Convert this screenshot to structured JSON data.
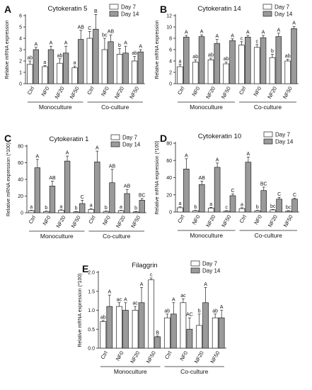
{
  "chart_data": [
    {
      "panel": "A",
      "type": "bar",
      "title": "Cytokeratin 5",
      "ylabel": "Relative mRNA expression",
      "ylim": [
        0,
        6
      ],
      "yticks": [
        0,
        1,
        2,
        3,
        4,
        5,
        6
      ],
      "categories": [
        "Ctrl",
        "NF0",
        "NF20",
        "NF50",
        "Ctrl",
        "NF0",
        "NF20",
        "NF50"
      ],
      "groups": [
        "Monoculture",
        "Co-culture"
      ],
      "series": [
        {
          "name": "Day 7",
          "values": [
            1.7,
            1.5,
            1.8,
            1.4,
            4.0,
            3.0,
            2.6,
            2.0
          ],
          "errors": [
            0.3,
            0.1,
            0.4,
            0.15,
            0.6,
            1.0,
            0.5,
            0.4
          ],
          "letters": [
            "ab",
            "a",
            "ab",
            "a",
            "C",
            "bc",
            "b",
            "ab"
          ]
        },
        {
          "name": "Day 14",
          "values": [
            3.0,
            3.0,
            2.7,
            3.9,
            4.8,
            3.7,
            2.7,
            2.8
          ],
          "errors": [
            0.2,
            0.3,
            0.6,
            0.8,
            1.3,
            0.6,
            0.6,
            0.2
          ],
          "letters": [
            "A",
            "A",
            "A",
            "AB",
            "B",
            "AB",
            "A",
            "A"
          ]
        }
      ]
    },
    {
      "panel": "B",
      "type": "bar",
      "title": "Cytokeratin 14",
      "ylabel": "Relative mRNA expression",
      "ylim": [
        0,
        12
      ],
      "yticks": [
        0,
        2,
        4,
        6,
        8,
        10,
        12
      ],
      "categories": [
        "Ctrl",
        "NF0",
        "NF20",
        "NF50",
        "Ctrl",
        "NF0",
        "NF20",
        "NF50"
      ],
      "groups": [
        "Monoculture",
        "Co-culture"
      ],
      "series": [
        {
          "name": "Day 7",
          "values": [
            3.0,
            3.8,
            4.2,
            3.5,
            6.8,
            6.4,
            4.6,
            4.0
          ],
          "errors": [
            0.4,
            0.4,
            0.3,
            0.3,
            0.6,
            0.5,
            0.6,
            0.3
          ],
          "letters": [
            "a",
            "ab",
            "ab",
            "ab",
            "c",
            "c",
            "b",
            "ab"
          ]
        },
        {
          "name": "Day 14",
          "values": [
            8.2,
            8.3,
            7.1,
            7.6,
            8.2,
            8.1,
            8.3,
            9.7
          ],
          "errors": [
            0.3,
            0.3,
            0.7,
            0.3,
            0.3,
            0.4,
            0.6,
            0.4
          ],
          "letters": [
            "A",
            "A",
            "A",
            "A",
            "A",
            "A",
            "A",
            "A"
          ]
        }
      ]
    },
    {
      "panel": "C",
      "type": "bar",
      "title": "Cytokeratin 1",
      "ylabel": "Relative mRNA expression (*100)",
      "ylim": [
        0,
        80
      ],
      "yticks": [
        0,
        20,
        40,
        60,
        80
      ],
      "categories": [
        "Ctrl",
        "NF0",
        "NF20",
        "NF50",
        "Ctrl",
        "NF0",
        "NF20",
        "NF50"
      ],
      "groups": [
        "Monoculture",
        "Co-culture"
      ],
      "series": [
        {
          "name": "Day 7",
          "values": [
            2.5,
            1.5,
            3.0,
            1.0,
            4.0,
            1.5,
            2.5,
            1.0
          ],
          "errors": [
            0.5,
            0.5,
            0.5,
            0.5,
            1.0,
            0.5,
            0.5,
            0.5
          ],
          "letters": [
            "a",
            "b",
            "a",
            "b",
            "a",
            "b",
            "a",
            "b"
          ]
        },
        {
          "name": "Day 14",
          "values": [
            54,
            32,
            62,
            11,
            61,
            36,
            23,
            15
          ],
          "errors": [
            10,
            6,
            6,
            4,
            13,
            16,
            5,
            2
          ],
          "letters": [
            "A",
            "AB",
            "A",
            "C",
            "A",
            "AB",
            "AB",
            "BC"
          ]
        }
      ]
    },
    {
      "panel": "D",
      "type": "bar",
      "title": "Cytokeratin 10",
      "ylabel": "Relative mRNA expression (*100)",
      "ylim": [
        0,
        80
      ],
      "yticks": [
        0,
        20,
        40,
        60,
        80
      ],
      "categories": [
        "Ctrl",
        "NF0",
        "NF20",
        "NF50",
        "Ctrl",
        "NF0",
        "NF20",
        "NF50"
      ],
      "groups": [
        "Monoculture",
        "Co-culture"
      ],
      "series": [
        {
          "name": "Day 7",
          "values": [
            5,
            1.5,
            4.5,
            1.0,
            4.0,
            1.5,
            2.5,
            1.0
          ],
          "errors": [
            1.0,
            0.5,
            1.0,
            0.5,
            1.0,
            0.5,
            0.5,
            0.5
          ],
          "letters": [
            "a",
            "b",
            "a",
            "c",
            "a",
            "b",
            "bc",
            "bc"
          ]
        },
        {
          "name": "Day 14",
          "values": [
            50,
            32,
            52,
            19,
            58,
            25,
            15,
            15
          ],
          "errors": [
            12,
            4,
            5,
            2,
            6,
            4,
            2,
            1
          ],
          "letters": [
            "A",
            "AB",
            "A",
            "C",
            "A",
            "BC",
            "C",
            "C"
          ]
        }
      ]
    },
    {
      "panel": "E",
      "type": "bar",
      "title": "Filaggrin",
      "ylabel": "Relative mRNA expression (*100)",
      "ylim": [
        0,
        2.0
      ],
      "yticks": [
        0.0,
        0.5,
        1.0,
        1.5,
        2.0
      ],
      "categories": [
        "Ctrl",
        "NF0",
        "NF20",
        "NF50",
        "Ctrl",
        "NF0",
        "NF20",
        "NF50"
      ],
      "groups": [
        "Monoculture",
        "Co-culture"
      ],
      "series": [
        {
          "name": "Day 7",
          "values": [
            0.7,
            1.1,
            1.0,
            1.8,
            0.8,
            1.2,
            0.6,
            0.8
          ],
          "errors": [
            0.03,
            0.1,
            0.1,
            0.05,
            0.1,
            0.1,
            0.3,
            0.1
          ],
          "letters": [
            "ab",
            "ac",
            "ac",
            "c",
            "ab",
            "ac",
            "b",
            "ab"
          ]
        },
        {
          "name": "Day 14",
          "values": [
            1.1,
            1.0,
            1.2,
            0.3,
            0.9,
            0.5,
            1.2,
            0.8
          ],
          "errors": [
            0.3,
            0.2,
            0.4,
            0.02,
            0.3,
            0.3,
            0.4,
            0.2
          ],
          "letters": [
            "A",
            "A",
            "A",
            "B",
            "A",
            "AC",
            "A",
            "A"
          ]
        }
      ]
    }
  ]
}
